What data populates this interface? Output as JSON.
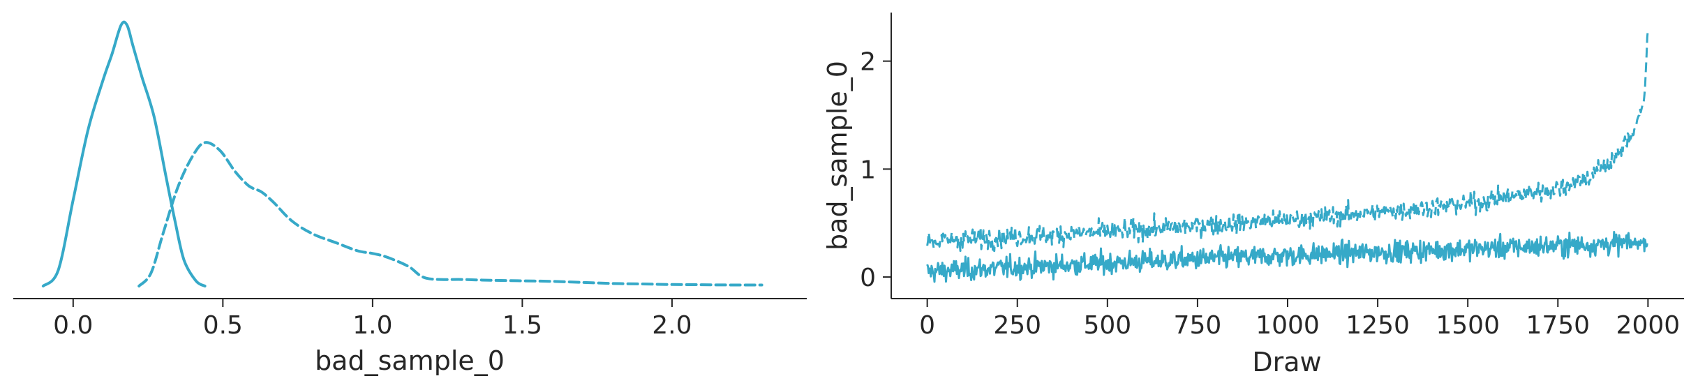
{
  "colors": {
    "series": "#36a9c8",
    "axis": "#262626",
    "background": "#ffffff"
  },
  "chart_data": [
    {
      "type": "line",
      "subtype": "kde",
      "xlabel": "bad_sample_0",
      "ylabel": "",
      "xlim": [
        -0.2,
        2.45
      ],
      "x_ticks": [
        0.0,
        0.5,
        1.0,
        1.5,
        2.0
      ],
      "x_tick_labels": [
        "0.0",
        "0.5",
        "1.0",
        "1.5",
        "2.0"
      ],
      "y_ticks": [],
      "grid": false,
      "series": [
        {
          "line_style": "solid",
          "x": [
            -0.1,
            -0.05,
            0.0,
            0.05,
            0.1,
            0.13,
            0.16,
            0.18,
            0.2,
            0.23,
            0.27,
            0.31,
            0.34,
            0.37,
            0.41,
            0.44
          ],
          "y": [
            0.0,
            0.06,
            0.33,
            0.6,
            0.79,
            0.89,
            1.0,
            1.0,
            0.92,
            0.8,
            0.65,
            0.42,
            0.25,
            0.1,
            0.02,
            0.0
          ]
        },
        {
          "line_style": "dashed",
          "x": [
            0.22,
            0.26,
            0.3,
            0.35,
            0.4,
            0.44,
            0.49,
            0.54,
            0.58,
            0.6,
            0.63,
            0.67,
            0.73,
            0.8,
            0.88,
            0.95,
            1.0,
            1.05,
            1.12,
            1.18,
            1.3,
            1.4,
            1.5,
            1.6,
            1.7,
            1.8,
            1.9,
            2.0,
            2.1,
            2.2,
            2.3
          ],
          "y": [
            0.0,
            0.05,
            0.2,
            0.38,
            0.5,
            0.55,
            0.52,
            0.44,
            0.39,
            0.375,
            0.36,
            0.32,
            0.25,
            0.2,
            0.165,
            0.135,
            0.125,
            0.11,
            0.075,
            0.03,
            0.025,
            0.022,
            0.02,
            0.018,
            0.014,
            0.01,
            0.008,
            0.006,
            0.005,
            0.004,
            0.004
          ]
        }
      ]
    },
    {
      "type": "line",
      "subtype": "trace",
      "xlabel": "Draw",
      "ylabel": "bad_sample_0",
      "xlim": [
        -100,
        2100
      ],
      "ylim": [
        -0.2,
        2.45
      ],
      "x_ticks": [
        0,
        250,
        500,
        750,
        1000,
        1250,
        1500,
        1750,
        2000
      ],
      "x_tick_labels": [
        "0",
        "250",
        "500",
        "750",
        "1000",
        "1250",
        "1500",
        "1750",
        "2000"
      ],
      "y_ticks": [
        0,
        1,
        2
      ],
      "y_tick_labels": [
        "0",
        "1",
        "2"
      ],
      "grid": false,
      "n_draws": 2000,
      "series": [
        {
          "line_style": "solid",
          "trend_x": [
            0,
            500,
            1000,
            1500,
            2000
          ],
          "trend_y": [
            0.05,
            0.13,
            0.2,
            0.26,
            0.32
          ],
          "noise": 0.05
        },
        {
          "line_style": "dashed",
          "trend_x": [
            0,
            500,
            1000,
            1250,
            1500,
            1750,
            1850,
            1920,
            1960,
            1990,
            2000
          ],
          "trend_y": [
            0.33,
            0.42,
            0.53,
            0.6,
            0.68,
            0.82,
            0.95,
            1.15,
            1.35,
            1.65,
            2.3
          ],
          "noise": 0.045
        }
      ]
    }
  ]
}
